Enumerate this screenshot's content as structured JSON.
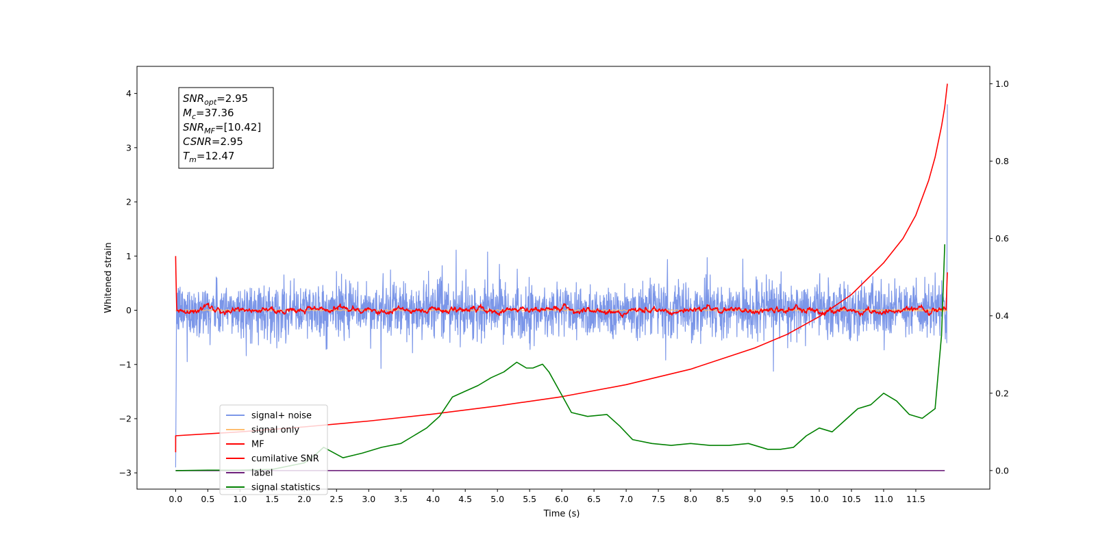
{
  "chart_data": {
    "type": "line",
    "title": "",
    "xlabel": "Time (s)",
    "ylabel": "Whitened strain",
    "xlim": [
      -0.6,
      12.65
    ],
    "ylim": [
      -3.3,
      4.5
    ],
    "ylim_right": [
      -0.048,
      1.045
    ],
    "grid": false,
    "legend_position": "lower-left",
    "x_ticks": [
      "0.0",
      "0.5",
      "1.0",
      "1.5",
      "2.0",
      "2.5",
      "3.0",
      "3.5",
      "4.0",
      "4.5",
      "5.0",
      "5.5",
      "6.0",
      "6.5",
      "7.0",
      "7.5",
      "8.0",
      "8.5",
      "9.0",
      "9.5",
      "10.0",
      "10.5",
      "11.0",
      "11.5"
    ],
    "y_ticks": [
      "4",
      "3",
      "2",
      "1",
      "0",
      "−1",
      "−2",
      "−3"
    ],
    "y_ticks_right": [
      "1.0",
      "0.8",
      "0.6",
      "0.4",
      "0.2",
      "0.0"
    ],
    "annotation_lines": [
      {
        "sym": "SNR",
        "sub": "opt",
        "value": "=2.95"
      },
      {
        "sym": "M",
        "sub": "c",
        "value": "=37.36"
      },
      {
        "sym": "SNR",
        "sub": "MF",
        "value": "=[10.42]"
      },
      {
        "sym": "CSNR",
        "sub": "",
        "value": "=2.95"
      },
      {
        "sym": "T",
        "sub": "m",
        "value": "=12.47"
      }
    ],
    "series": [
      {
        "name": "signal+ noise",
        "axis": "left",
        "color": "#7b96e8",
        "kind": "noise",
        "amplitude": 0.55,
        "x_range": [
          0.0,
          11.99
        ]
      },
      {
        "name": "signal only",
        "axis": "left",
        "color": "#ffbe6f",
        "kind": "chirp",
        "x_range": [
          0.0,
          11.99
        ]
      },
      {
        "name": "MF",
        "axis": "left",
        "color": "#ff0000",
        "kind": "smooth-noise",
        "amplitude": 0.12,
        "x_range": [
          0.0,
          11.99
        ]
      },
      {
        "name": "cumilative SNR",
        "axis": "right",
        "color": "#ff0000",
        "x": [
          0.0,
          1.0,
          2.0,
          3.0,
          4.0,
          5.0,
          6.0,
          7.0,
          8.0,
          9.0,
          9.5,
          10.0,
          10.5,
          11.0,
          11.3,
          11.5,
          11.7,
          11.8,
          11.9,
          11.95,
          11.99
        ],
        "values": [
          0.09,
          0.1,
          0.113,
          0.128,
          0.146,
          0.167,
          0.191,
          0.222,
          0.262,
          0.317,
          0.352,
          0.398,
          0.455,
          0.537,
          0.6,
          0.66,
          0.75,
          0.81,
          0.89,
          0.94,
          1.0
        ]
      },
      {
        "name": "label",
        "axis": "right",
        "color": "#6c1e7a",
        "x": [
          0.0,
          11.95
        ],
        "values": [
          0.0,
          0.0
        ]
      },
      {
        "name": "signal statistics",
        "axis": "right",
        "color": "#008000",
        "x": [
          0.0,
          0.5,
          1.0,
          1.5,
          2.0,
          2.2,
          2.3,
          2.6,
          2.9,
          3.2,
          3.5,
          3.7,
          3.9,
          4.1,
          4.3,
          4.5,
          4.7,
          4.9,
          5.1,
          5.3,
          5.45,
          5.55,
          5.7,
          5.8,
          5.95,
          6.15,
          6.4,
          6.7,
          6.9,
          7.1,
          7.4,
          7.7,
          8.0,
          8.3,
          8.6,
          8.9,
          9.2,
          9.4,
          9.6,
          9.8,
          10.0,
          10.2,
          10.4,
          10.6,
          10.8,
          11.0,
          11.2,
          11.4,
          11.6,
          11.8,
          11.9,
          11.95
        ],
        "values": [
          0.0,
          0.001,
          0.001,
          0.003,
          0.02,
          0.045,
          0.06,
          0.033,
          0.045,
          0.06,
          0.07,
          0.09,
          0.11,
          0.14,
          0.19,
          0.205,
          0.22,
          0.24,
          0.255,
          0.28,
          0.265,
          0.265,
          0.275,
          0.255,
          0.21,
          0.15,
          0.14,
          0.145,
          0.115,
          0.08,
          0.07,
          0.065,
          0.07,
          0.065,
          0.065,
          0.07,
          0.055,
          0.055,
          0.06,
          0.09,
          0.11,
          0.1,
          0.13,
          0.16,
          0.17,
          0.2,
          0.18,
          0.145,
          0.135,
          0.16,
          0.35,
          0.585
        ]
      }
    ]
  }
}
